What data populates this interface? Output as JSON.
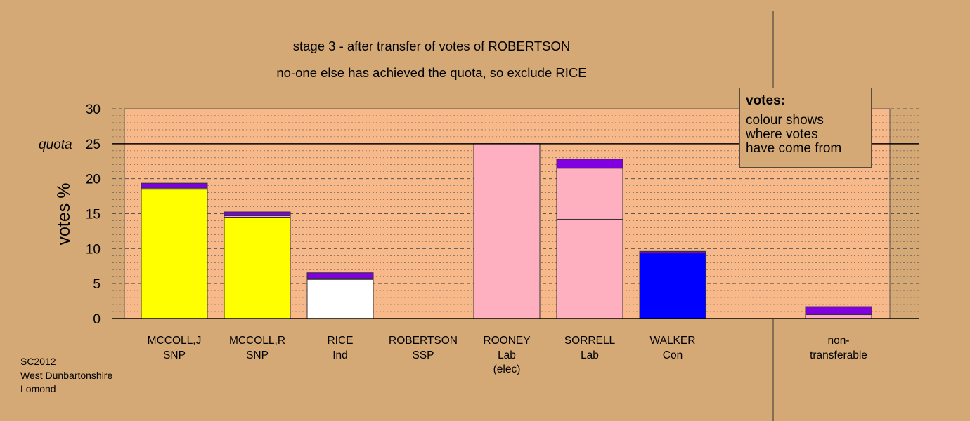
{
  "chart_data": {
    "type": "bar",
    "title": "stage 3 - after transfer of votes of ROBERTSON",
    "subtitle": "no-one else has achieved the quota, so exclude RICE",
    "ylabel": "votes %",
    "ylim": [
      0,
      30
    ],
    "yticks": [
      "0",
      "5",
      "10",
      "15",
      "20",
      "25",
      "30"
    ],
    "quota_label": "quota",
    "quota_value": 25,
    "grid": true,
    "categories": [
      {
        "name": "MCCOLL,J",
        "party": "SNP",
        "note": ""
      },
      {
        "name": "MCCOLL,R",
        "party": "SNP",
        "note": ""
      },
      {
        "name": "RICE",
        "party": "Ind",
        "note": ""
      },
      {
        "name": "ROBERTSON",
        "party": "SSP",
        "note": ""
      },
      {
        "name": "ROONEY",
        "party": "Lab",
        "note": "(elec)"
      },
      {
        "name": "SORRELL",
        "party": "Lab",
        "note": ""
      },
      {
        "name": "WALKER",
        "party": "Con",
        "note": ""
      },
      {
        "name": "non-",
        "party": "transferable",
        "note": ""
      }
    ],
    "bars": [
      {
        "segments": [
          {
            "value": 18.5,
            "color": "#ffff00"
          },
          {
            "value": 0.15,
            "color": "#ffb0c0"
          },
          {
            "value": 0.7,
            "color": "#8000e0"
          }
        ]
      },
      {
        "segments": [
          {
            "value": 14.5,
            "color": "#ffff00"
          },
          {
            "value": 0.2,
            "color": "#ffb0c0"
          },
          {
            "value": 0.55,
            "color": "#8000e0"
          }
        ]
      },
      {
        "segments": [
          {
            "value": 5.6,
            "color": "#ffffff"
          },
          {
            "value": 0.15,
            "color": "#ffb0c0"
          },
          {
            "value": 0.8,
            "color": "#8000e0"
          }
        ]
      },
      {
        "segments": [
          {
            "value": 0,
            "color": "#7a00cc"
          }
        ]
      },
      {
        "segments": [
          {
            "value": 25,
            "color": "#ffb0c0"
          }
        ]
      },
      {
        "segments": [
          {
            "value": 14.2,
            "color": "#ffb0c0"
          },
          {
            "value": 7.3,
            "color": "#ffb0c0"
          },
          {
            "value": 1.3,
            "color": "#8000e0"
          }
        ]
      },
      {
        "segments": [
          {
            "value": 9.35,
            "color": "#0000ff"
          },
          {
            "value": 0.05,
            "color": "#ffb0c0"
          },
          {
            "value": 0.2,
            "color": "#8000e0"
          }
        ]
      },
      {
        "segments": [
          {
            "value": 0.55,
            "color": "#ffb0c0"
          },
          {
            "value": 1.15,
            "color": "#8000e0"
          }
        ]
      }
    ]
  },
  "legend": {
    "heading": "votes:",
    "line1": "colour shows",
    "line2": "where votes",
    "line3": "have come from"
  },
  "corner": {
    "line1": "SC2012",
    "line2": "West Dunbartonshire",
    "line3": "Lomond"
  },
  "colors": {
    "background": "#d4a976",
    "plot": "#f7b88a",
    "grid": "#555555"
  }
}
